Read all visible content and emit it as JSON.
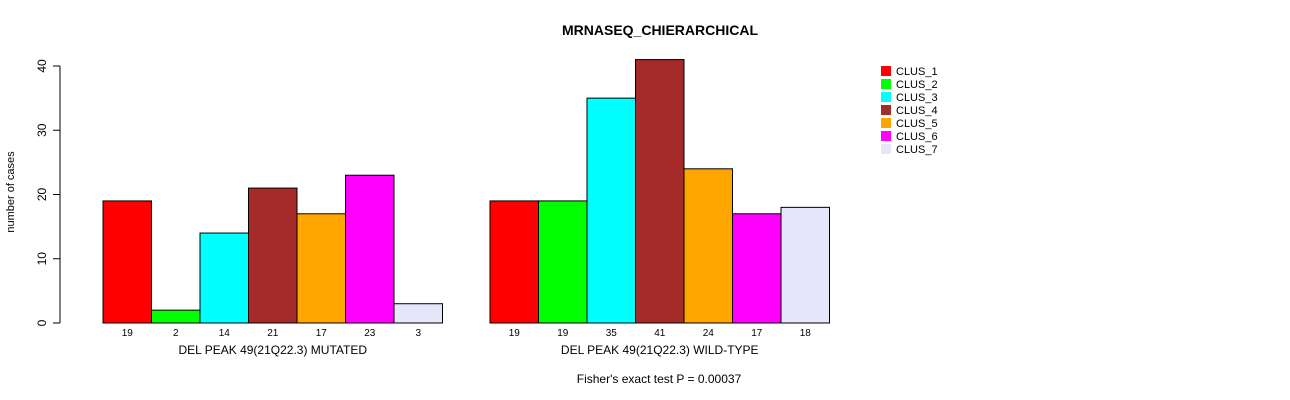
{
  "chart_data": {
    "type": "bar",
    "title": "MRNASEQ_CHIERARCHICAL",
    "ylabel": "number of cases",
    "ylim": [
      0,
      40
    ],
    "yticks": [
      0,
      10,
      20,
      30,
      40
    ],
    "footnote": "Fisher's exact test P = 0.00037",
    "legend_position": "top-right",
    "series": [
      {
        "name": "CLUS_1",
        "color": "#FF0000"
      },
      {
        "name": "CLUS_2",
        "color": "#00FF00"
      },
      {
        "name": "CLUS_3",
        "color": "#00FFFF"
      },
      {
        "name": "CLUS_4",
        "color": "#A52A2A"
      },
      {
        "name": "CLUS_5",
        "color": "#FFA500"
      },
      {
        "name": "CLUS_6",
        "color": "#FF00FF"
      },
      {
        "name": "CLUS_7",
        "color": "#E6E6FA"
      }
    ],
    "groups": [
      {
        "xlabel": "DEL PEAK 49(21Q22.3) MUTATED",
        "values": [
          19,
          2,
          14,
          21,
          17,
          23,
          3
        ]
      },
      {
        "xlabel": "DEL PEAK 49(21Q22.3) WILD-TYPE",
        "values": [
          19,
          19,
          35,
          41,
          24,
          17,
          18
        ]
      }
    ]
  }
}
